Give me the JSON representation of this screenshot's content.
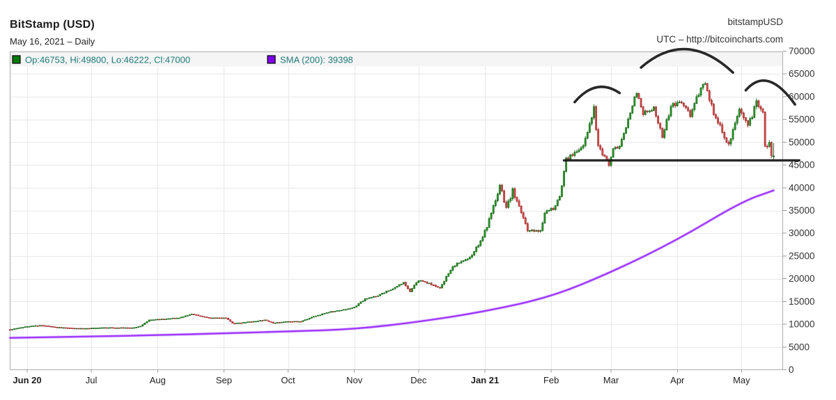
{
  "header": {
    "title": "BitStamp (USD)",
    "subtitle": "May 16, 2021 – Daily",
    "symbol_watermark": "bitstampUSD",
    "utc_note": "UTC – http://bitcoincharts.com"
  },
  "legend": {
    "text_color": "#1f7878",
    "items": [
      {
        "swatch_color": "#007a00",
        "swatch_border": "#000000",
        "label": "Op:46753, Hi:49800, Lo:46222, Cl:47000"
      },
      {
        "swatch_color": "#7d00e8",
        "swatch_border": "#000000",
        "label": "SMA (200): 39398"
      }
    ]
  },
  "axes": {
    "y_ticks": [
      0,
      5000,
      10000,
      15000,
      20000,
      25000,
      30000,
      35000,
      40000,
      45000,
      50000,
      55000,
      60000,
      65000,
      70000
    ],
    "x_months": [
      {
        "label": "Jun 20",
        "date": "2020-06-01",
        "bold": true
      },
      {
        "label": "Jul",
        "date": "2020-07-01",
        "bold": false
      },
      {
        "label": "Aug",
        "date": "2020-08-01",
        "bold": false
      },
      {
        "label": "Sep",
        "date": "2020-09-01",
        "bold": false
      },
      {
        "label": "Oct",
        "date": "2020-10-01",
        "bold": false
      },
      {
        "label": "Nov",
        "date": "2020-11-01",
        "bold": false
      },
      {
        "label": "Dec",
        "date": "2020-12-01",
        "bold": false
      },
      {
        "label": "Jan 21",
        "date": "2021-01-01",
        "bold": true
      },
      {
        "label": "Feb",
        "date": "2021-02-01",
        "bold": false
      },
      {
        "label": "Mar",
        "date": "2021-03-01",
        "bold": false
      },
      {
        "label": "Apr",
        "date": "2021-04-01",
        "bold": false
      },
      {
        "label": "May",
        "date": "2021-05-01",
        "bold": false
      }
    ]
  },
  "chart_data": {
    "type": "candlestick",
    "interval": "Daily",
    "as_of": "May 16, 2021",
    "ylim": [
      0,
      70000
    ],
    "y_tick_step": 5000,
    "x_start": "2020-05-24",
    "x_end": "2021-05-16",
    "last_candle": {
      "open": 46753,
      "high": 49800,
      "low": 46222,
      "close": 47000
    },
    "sma_period": 200,
    "sma_last": 39398,
    "price_close_anchors": [
      [
        "2020-05-24",
        8800
      ],
      [
        "2020-06-01",
        9500
      ],
      [
        "2020-06-08",
        9750
      ],
      [
        "2020-06-15",
        9300
      ],
      [
        "2020-06-27",
        9050
      ],
      [
        "2020-07-06",
        9250
      ],
      [
        "2020-07-20",
        9200
      ],
      [
        "2020-07-24",
        9550
      ],
      [
        "2020-07-28",
        10950
      ],
      [
        "2020-08-02",
        11100
      ],
      [
        "2020-08-11",
        11400
      ],
      [
        "2020-08-17",
        12250
      ],
      [
        "2020-08-25",
        11350
      ],
      [
        "2020-09-02",
        11400
      ],
      [
        "2020-09-05",
        10200
      ],
      [
        "2020-09-09",
        10300
      ],
      [
        "2020-09-20",
        10900
      ],
      [
        "2020-09-24",
        10250
      ],
      [
        "2020-10-01",
        10600
      ],
      [
        "2020-10-07",
        10600
      ],
      [
        "2020-10-12",
        11500
      ],
      [
        "2020-10-21",
        12800
      ],
      [
        "2020-10-28",
        13250
      ],
      [
        "2020-11-01",
        13750
      ],
      [
        "2020-11-06",
        15550
      ],
      [
        "2020-11-12",
        16300
      ],
      [
        "2020-11-18",
        17650
      ],
      [
        "2020-11-24",
        19150
      ],
      [
        "2020-11-27",
        17150
      ],
      [
        "2020-12-01",
        19700
      ],
      [
        "2020-12-11",
        18050
      ],
      [
        "2020-12-17",
        22800
      ],
      [
        "2020-12-25",
        24700
      ],
      [
        "2020-12-31",
        29000
      ],
      [
        "2021-01-03",
        33000
      ],
      [
        "2021-01-08",
        40600
      ],
      [
        "2021-01-11",
        35500
      ],
      [
        "2021-01-14",
        39300
      ],
      [
        "2021-01-21",
        30800
      ],
      [
        "2021-01-27",
        30400
      ],
      [
        "2021-01-29",
        34300
      ],
      [
        "2021-02-02",
        35500
      ],
      [
        "2021-02-05",
        38100
      ],
      [
        "2021-02-08",
        46200
      ],
      [
        "2021-02-12",
        47900
      ],
      [
        "2021-02-16",
        49200
      ],
      [
        "2021-02-21",
        57400
      ],
      [
        "2021-02-23",
        48800
      ],
      [
        "2021-02-28",
        45200
      ],
      [
        "2021-03-02",
        48400
      ],
      [
        "2021-03-05",
        48900
      ],
      [
        "2021-03-09",
        54900
      ],
      [
        "2021-03-13",
        61200
      ],
      [
        "2021-03-16",
        56300
      ],
      [
        "2021-03-21",
        57400
      ],
      [
        "2021-03-25",
        51300
      ],
      [
        "2021-03-29",
        57800
      ],
      [
        "2021-04-02",
        59000
      ],
      [
        "2021-04-07",
        56000
      ],
      [
        "2021-04-10",
        59800
      ],
      [
        "2021-04-14",
        63200
      ],
      [
        "2021-04-18",
        56200
      ],
      [
        "2021-04-21",
        53800
      ],
      [
        "2021-04-25",
        49100
      ],
      [
        "2021-04-30",
        57800
      ],
      [
        "2021-05-04",
        53200
      ],
      [
        "2021-05-08",
        58900
      ],
      [
        "2021-05-11",
        56700
      ],
      [
        "2021-05-12",
        49150
      ],
      [
        "2021-05-14",
        49900
      ],
      [
        "2021-05-15",
        46760
      ],
      [
        "2021-05-16",
        47000
      ]
    ],
    "sma_anchors": [
      [
        "2020-05-24",
        7000
      ],
      [
        "2020-07-01",
        7300
      ],
      [
        "2020-08-01",
        7600
      ],
      [
        "2020-09-01",
        8000
      ],
      [
        "2020-10-01",
        8400
      ],
      [
        "2020-11-01",
        8900
      ],
      [
        "2020-12-01",
        10500
      ],
      [
        "2021-01-01",
        12800
      ],
      [
        "2021-02-01",
        16000
      ],
      [
        "2021-03-01",
        21400
      ],
      [
        "2021-04-01",
        28500
      ],
      [
        "2021-05-01",
        36900
      ],
      [
        "2021-05-16",
        39398
      ]
    ],
    "volatility_anchors": [
      [
        "2020-05-24",
        0.009
      ],
      [
        "2020-09-30",
        0.011
      ],
      [
        "2020-11-20",
        0.016
      ],
      [
        "2020-12-15",
        0.025
      ],
      [
        "2021-01-12",
        0.03
      ],
      [
        "2021-01-25",
        0.022
      ],
      [
        "2021-02-10",
        0.024
      ],
      [
        "2021-03-06",
        0.018
      ],
      [
        "2021-04-14",
        0.02
      ],
      [
        "2021-05-10",
        0.026
      ],
      [
        "2021-05-16",
        0.028
      ]
    ],
    "annotations": {
      "support_line": {
        "price": 46000,
        "from": "2021-02-07",
        "to": "2021-05-28"
      },
      "arcs": [
        {
          "name": "left-shoulder-arc",
          "from": [
            "2021-02-12",
            58800
          ],
          "ctrl": [
            "2021-02-22",
            64300
          ],
          "to": [
            "2021-03-05",
            60800
          ]
        },
        {
          "name": "head-arc",
          "from": [
            "2021-03-15",
            66400
          ],
          "ctrl": [
            "2021-04-05",
            75000
          ],
          "to": [
            "2021-04-27",
            65300
          ]
        },
        {
          "name": "right-shoulder-arc",
          "from": [
            "2021-05-03",
            61400
          ],
          "ctrl": [
            "2021-05-13",
            66900
          ],
          "to": [
            "2021-05-26",
            58300
          ]
        }
      ]
    },
    "colors": {
      "up_fill": "#2ba02b",
      "up_stroke": "#135f13",
      "down_fill": "#dd5555",
      "down_stroke": "#992020",
      "sma": "#9b30ff",
      "sma_halo": "#c78aff",
      "annotation": "#161616",
      "grid": "#e8e8e8",
      "axis_border": "#ababab",
      "tick": "#999999",
      "axis_text": "#333333",
      "month_text": "#1f1f1f",
      "legend_bg": "#f4f4f4"
    }
  }
}
